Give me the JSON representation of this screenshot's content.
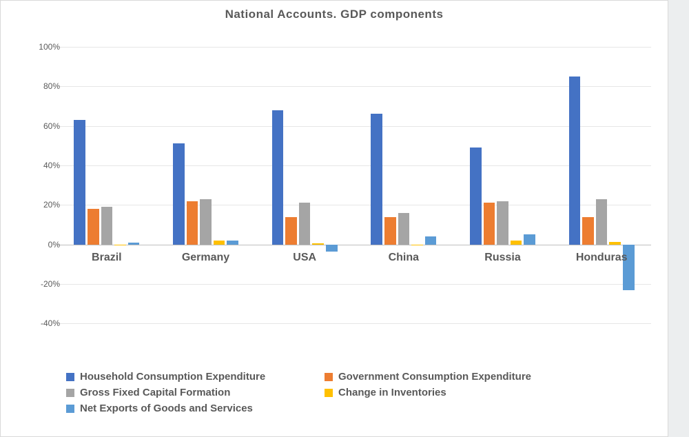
{
  "chart": {
    "type": "bar",
    "title": "National  Accounts.  GDP components",
    "title_fontsize": 17,
    "title_color": "#595959",
    "background_color": "#ffffff",
    "page_background": "#eceeef",
    "plot_border_color": "#d9d9d9",
    "font_family": "Segoe UI, Arial, sans-serif",
    "ylim": [
      -50,
      100
    ],
    "ytick_step": 20,
    "yticks": [
      -40,
      -20,
      0,
      20,
      40,
      60,
      80,
      100
    ],
    "ytick_suffix": "%",
    "ytick_fontsize": 12,
    "grid_color": "#e6e6e6",
    "axis_color": "#bfbfbf",
    "zero_line_color": "#bfbfbf",
    "categories": [
      "Brazil",
      "Germany",
      "USA",
      "China",
      "Russia",
      "Honduras"
    ],
    "category_fontsize": 16,
    "category_color": "#595959",
    "group_inner_width": 0.66,
    "bar_gap_ratio": 0.18,
    "series": [
      {
        "name": "Household Consumption Expenditure",
        "color": "#4472c4",
        "values": [
          63,
          51,
          68,
          66,
          49,
          85
        ]
      },
      {
        "name": "Government Consumption Expenditure",
        "color": "#ed7d31",
        "values": [
          18,
          22,
          14,
          14,
          21,
          14
        ]
      },
      {
        "name": "Gross Fixed Capital Formation",
        "color": "#a5a5a5",
        "values": [
          19,
          23,
          21,
          16,
          22,
          23
        ]
      },
      {
        "name": "Change in Inventories",
        "color": "#ffc000",
        "values": [
          -0.5,
          2,
          0.7,
          -0.5,
          2,
          1.2
        ]
      },
      {
        "name": "Net Exports of Goods and Services",
        "color": "#5b9bd5",
        "values": [
          0.8,
          2,
          -3.5,
          4,
          5,
          -23
        ]
      }
    ],
    "legend": {
      "fontsize": 15,
      "color": "#595959",
      "swatch_size": 12,
      "layout": [
        [
          "Household Consumption Expenditure",
          "Government Consumption Expenditure"
        ],
        [
          "Gross Fixed Capital Formation",
          "Change in Inventories"
        ],
        [
          "Net Exports of Goods and Services"
        ]
      ],
      "col2_left": 355
    }
  }
}
